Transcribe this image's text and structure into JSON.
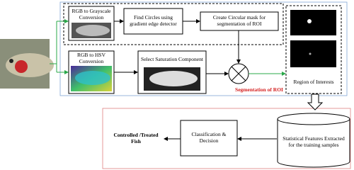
{
  "nodes": [
    {
      "label": "RGB to Grayscale Conversion"
    },
    {
      "label": "Find Circles using gradient edge detector"
    },
    {
      "label": "Create Circular mask for segmentation of ROI"
    },
    {
      "label": "RGB to HSV Conversion"
    },
    {
      "label": "Select Saturation Component"
    },
    {
      "label": "Segmentation of  ROI"
    },
    {
      "label": "Region of Interests"
    },
    {
      "label": "Statistical Features Extracted for the training samples"
    },
    {
      "label": "Classification & Decision"
    },
    {
      "label": "Controlled /Treated Fish"
    }
  ]
}
